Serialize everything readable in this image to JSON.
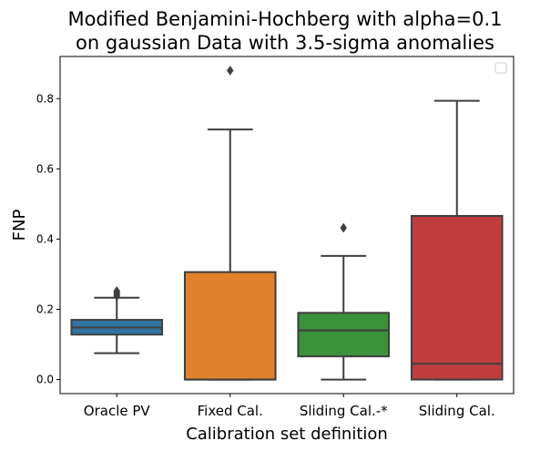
{
  "chart_data": {
    "type": "box",
    "title_lines": [
      "Modified Benjamini-Hochberg with alpha=0.1",
      "on gaussian Data with 3.5-sigma anomalies"
    ],
    "xlabel": "Calibration set definition",
    "ylabel": "FNP",
    "ylim": [
      -0.04,
      0.92
    ],
    "yticks": [
      0.0,
      0.2,
      0.4,
      0.6,
      0.8
    ],
    "ytick_labels": [
      "0.0",
      "0.2",
      "0.4",
      "0.6",
      "0.8"
    ],
    "legend": "top-right, empty",
    "categories": [
      "Oracle PV",
      "Fixed Cal.",
      "Sliding Cal.-*",
      "Sliding Cal."
    ],
    "colors": [
      "#3274a1",
      "#e1812c",
      "#3a923a",
      "#c03d3e"
    ],
    "edge_color": "#3f3f3f",
    "boxes": [
      {
        "whisker_low": 0.075,
        "q1": 0.128,
        "median": 0.148,
        "q3": 0.17,
        "whisker_high": 0.233,
        "outliers": [
          0.238,
          0.243,
          0.248,
          0.252
        ]
      },
      {
        "whisker_low": 0.0,
        "q1": 0.0,
        "median": 0.0,
        "q3": 0.306,
        "whisker_high": 0.712,
        "outliers": [
          0.88
        ]
      },
      {
        "whisker_low": 0.0,
        "q1": 0.066,
        "median": 0.14,
        "q3": 0.19,
        "whisker_high": 0.352,
        "outliers": [
          0.432
        ]
      },
      {
        "whisker_low": 0.0,
        "q1": 0.0,
        "median": 0.045,
        "q3": 0.466,
        "whisker_high": 0.794,
        "outliers": []
      }
    ]
  }
}
